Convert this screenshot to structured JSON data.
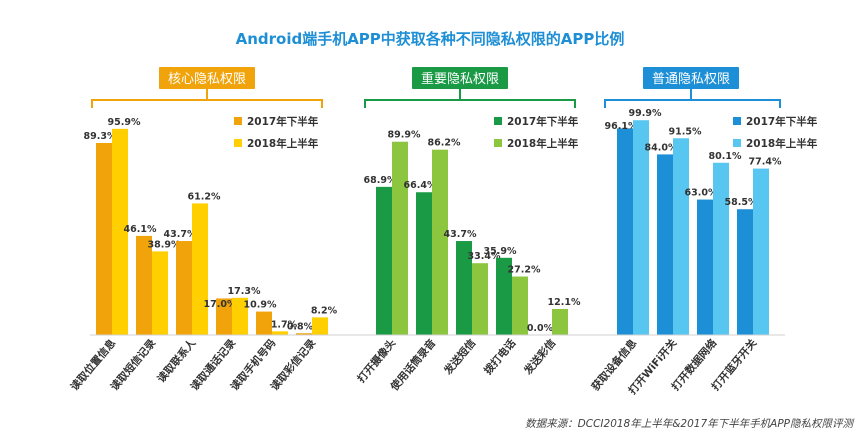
{
  "chart_data": {
    "type": "bar",
    "title": "Android端手机APP中获取各种不同隐私权限的APP比例",
    "source": "数据来源：DCCI2018年上半年&2017年下半年手机APP隐私权限评测",
    "ylim": [
      0,
      100
    ],
    "unit": "%",
    "groups": [
      {
        "name": "核心隐私权限",
        "colors": [
          "#f0a30a",
          "#ffcf00"
        ],
        "legend": [
          "2017年下半年",
          "2018年上半年"
        ],
        "categories": [
          "读取位置信息",
          "读取短信记录",
          "读取联系人",
          "读取通话记录",
          "读取手机号码",
          "读取彩信记录"
        ],
        "series": [
          {
            "name": "2017年下半年",
            "values": [
              89.3,
              46.1,
              43.7,
              17.0,
              10.9,
              0.8
            ]
          },
          {
            "name": "2018年上半年",
            "values": [
              95.9,
              38.9,
              61.2,
              17.3,
              1.7,
              8.2
            ]
          }
        ]
      },
      {
        "name": "重要隐私权限",
        "colors": [
          "#1b9a46",
          "#8cc63f"
        ],
        "legend": [
          "2017年下半年",
          "2018年上半年"
        ],
        "categories": [
          "打开摄像头",
          "使用话筒录音",
          "发送短信",
          "拨打电话",
          "发送彩信"
        ],
        "series": [
          {
            "name": "2017年下半年",
            "values": [
              68.9,
              66.4,
              43.7,
              35.9,
              0.0
            ]
          },
          {
            "name": "2018年上半年",
            "values": [
              89.9,
              86.2,
              33.4,
              27.2,
              12.1
            ]
          }
        ]
      },
      {
        "name": "普通隐私权限",
        "colors": [
          "#1c8fd6",
          "#57c6f1"
        ],
        "legend": [
          "2017年下半年",
          "2018年上半年"
        ],
        "categories": [
          "获取设备信息",
          "打开WiFi开关",
          "打开数据网络",
          "打开蓝牙开关"
        ],
        "series": [
          {
            "name": "2017年下半年",
            "values": [
              96.1,
              84.0,
              63.0,
              58.5
            ]
          },
          {
            "name": "2018年上半年",
            "values": [
              99.9,
              91.5,
              80.1,
              77.4
            ]
          }
        ]
      }
    ]
  }
}
